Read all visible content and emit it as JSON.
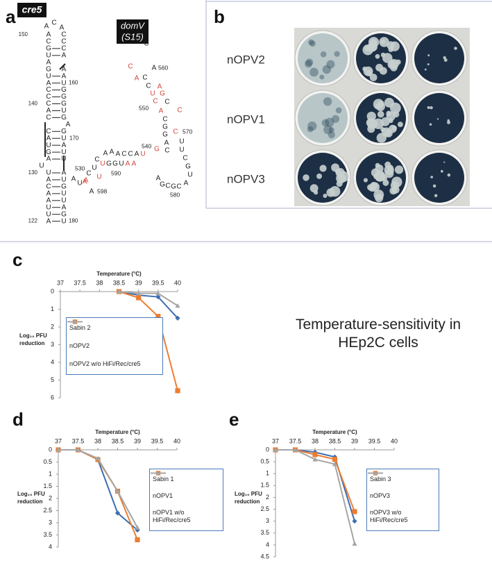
{
  "panel_labels": [
    "a",
    "b",
    "c",
    "d",
    "e"
  ],
  "panel_a": {
    "cre5": {
      "title": "cre5",
      "bases": [
        "A",
        "C",
        "A",
        "A",
        "C",
        "C",
        "C",
        "G",
        "C",
        "U",
        "A",
        "A",
        "G",
        "A",
        "U",
        "A",
        "A",
        "U",
        "C",
        "G",
        "C",
        "G",
        "C",
        "G",
        "A",
        "U",
        "C",
        "G",
        "A",
        "C",
        "G",
        "A",
        "U",
        "U",
        "A",
        "G",
        "U",
        "A",
        "U",
        "U",
        "U",
        "A",
        "A",
        "U",
        "C",
        "G",
        "A",
        "U",
        "A",
        "U",
        "U",
        "A",
        "U",
        "G",
        "A",
        "U"
      ],
      "numbers": [
        "150",
        "160",
        "140",
        "170",
        "130",
        "122",
        "180"
      ]
    },
    "domV": {
      "title": "domV",
      "subtitle": "(S15)",
      "bases": [
        {
          "b": "C",
          "color": "#222222"
        },
        {
          "b": "C",
          "color": "#222222"
        },
        {
          "b": "C",
          "color": "#d0453a"
        },
        {
          "b": "A",
          "color": "#222222"
        },
        {
          "b": "A",
          "color": "#d0453a"
        },
        {
          "b": "C",
          "color": "#222222"
        },
        {
          "b": "C",
          "color": "#222222"
        },
        {
          "b": "A",
          "color": "#d0453a"
        },
        {
          "b": "U",
          "color": "#d0453a"
        },
        {
          "b": "G",
          "color": "#d0453a"
        },
        {
          "b": "C",
          "color": "#d0453a"
        },
        {
          "b": "C",
          "color": "#222222"
        },
        {
          "b": "A",
          "color": "#d0453a"
        },
        {
          "b": "C",
          "color": "#d0453a"
        },
        {
          "b": "C",
          "color": "#222222"
        },
        {
          "b": "G",
          "color": "#222222"
        },
        {
          "b": "G",
          "color": "#222222"
        },
        {
          "b": "C",
          "color": "#d0453a"
        },
        {
          "b": "A",
          "color": "#222222"
        },
        {
          "b": "U",
          "color": "#222222"
        },
        {
          "b": "C",
          "color": "#222222"
        },
        {
          "b": "U",
          "color": "#222222"
        },
        {
          "b": "G",
          "color": "#d0453a"
        },
        {
          "b": "C",
          "color": "#222222"
        },
        {
          "b": "G",
          "color": "#222222"
        },
        {
          "b": "U",
          "color": "#222222"
        },
        {
          "b": "A",
          "color": "#222222"
        },
        {
          "b": "C",
          "color": "#222222"
        },
        {
          "b": "G",
          "color": "#222222"
        },
        {
          "b": "C",
          "color": "#222222"
        },
        {
          "b": "G",
          "color": "#222222"
        },
        {
          "b": "A",
          "color": "#222222"
        },
        {
          "b": "A",
          "color": "#222222"
        },
        {
          "b": "A",
          "color": "#222222"
        },
        {
          "b": "A",
          "color": "#222222"
        },
        {
          "b": "C",
          "color": "#222222"
        },
        {
          "b": "C",
          "color": "#222222"
        },
        {
          "b": "A",
          "color": "#222222"
        },
        {
          "b": "U",
          "color": "#d0453a"
        },
        {
          "b": "U",
          "color": "#d0453a"
        },
        {
          "b": "G",
          "color": "#222222"
        },
        {
          "b": "G",
          "color": "#222222"
        },
        {
          "b": "U",
          "color": "#222222"
        },
        {
          "b": "A",
          "color": "#d0453a"
        },
        {
          "b": "A",
          "color": "#d0453a"
        },
        {
          "b": "C",
          "color": "#222222"
        },
        {
          "b": "U",
          "color": "#222222"
        },
        {
          "b": "C",
          "color": "#222222"
        },
        {
          "b": "U",
          "color": "#d0453a"
        },
        {
          "b": "A",
          "color": "#d0453a"
        },
        {
          "b": "A",
          "color": "#222222"
        },
        {
          "b": "U",
          "color": "#222222"
        },
        {
          "b": "A",
          "color": "#d0453a"
        },
        {
          "b": "A",
          "color": "#222222"
        }
      ],
      "numbers": [
        "560",
        "550",
        "570",
        "540",
        "530",
        "590",
        "580",
        "598"
      ]
    }
  },
  "panel_b": {
    "rows": [
      "nOPV2",
      "nOPV1",
      "nOPV3"
    ]
  },
  "annotation": "Temperature-sensitivity in HEp2C cells",
  "chart_data": [
    {
      "type": "line",
      "xlabel": "Temperature (°C)",
      "ylabel": "Log₁₀ PFU reduction",
      "x": [
        38.5,
        39,
        39.5,
        40
      ],
      "xlim": [
        37,
        40
      ],
      "xticks": [
        37,
        37.5,
        38,
        38.5,
        39,
        39.5,
        40
      ],
      "ylim": [
        0,
        6
      ],
      "yticks": [
        0,
        1,
        2,
        3,
        4,
        5,
        6
      ],
      "y_inverted": true,
      "legend": "left",
      "series": [
        {
          "name": "Sabin 2",
          "color": "#3d6eb0",
          "marker": "diamond",
          "values": [
            0,
            0.2,
            0.3,
            1.5
          ]
        },
        {
          "name": "nOPV2",
          "color": "#ec7d31",
          "marker": "square",
          "values": [
            0,
            0.35,
            1.4,
            5.6
          ]
        },
        {
          "name": "nOPV2 w/o HiFi/Rec/cre5",
          "color": "#a5a5a5",
          "marker": "triangle",
          "values": [
            0,
            0.1,
            0.1,
            0.8
          ]
        }
      ]
    },
    {
      "type": "line",
      "xlabel": "Temperature (°C)",
      "ylabel": "Log₁₀ PFU reduction",
      "x": [
        37,
        37.5,
        38,
        38.5,
        39
      ],
      "xlim": [
        37,
        40
      ],
      "xticks": [
        37,
        37.5,
        38,
        38.5,
        39,
        39.5,
        40
      ],
      "ylim": [
        0,
        4
      ],
      "yticks": [
        0,
        0.5,
        1,
        1.5,
        2,
        2.5,
        3,
        3.5,
        4
      ],
      "y_inverted": true,
      "legend": "right",
      "series": [
        {
          "name": "Sabin 1",
          "color": "#3d6eb0",
          "marker": "diamond",
          "values": [
            0,
            0,
            0.4,
            2.6,
            3.3
          ]
        },
        {
          "name": "nOPV1",
          "color": "#ec7d31",
          "marker": "square",
          "values": [
            0,
            0,
            0.4,
            1.7,
            3.7
          ]
        },
        {
          "name": "nOPV1 w/o HiFi/Rec/cre5",
          "color": "#a5a5a5",
          "marker": "triangle",
          "values": [
            0,
            0,
            0.35,
            1.7,
            3.2
          ]
        }
      ]
    },
    {
      "type": "line",
      "xlabel": "Temperature (°C)",
      "ylabel": "Log₁₀ PFU reduction",
      "x": [
        37,
        37.5,
        38,
        38.5,
        39
      ],
      "xlim": [
        37,
        40
      ],
      "xticks": [
        37,
        37.5,
        38,
        38.5,
        39,
        39.5,
        40
      ],
      "ylim": [
        0,
        4.5
      ],
      "yticks": [
        0,
        0.5,
        1,
        1.5,
        2,
        2.5,
        3,
        3.5,
        4,
        4.5
      ],
      "y_inverted": true,
      "legend": "right",
      "series": [
        {
          "name": "Sabin 3",
          "color": "#3d6eb0",
          "marker": "diamond",
          "values": [
            0,
            0,
            0.1,
            0.3,
            3.0
          ]
        },
        {
          "name": "nOPV3",
          "color": "#ec7d31",
          "marker": "square",
          "values": [
            0,
            0,
            0.2,
            0.4,
            2.6
          ]
        },
        {
          "name": "nOPV3 w/o HiFi/Rec/cre5",
          "color": "#a5a5a5",
          "marker": "triangle",
          "values": [
            0,
            0,
            0.4,
            0.6,
            3.95
          ]
        }
      ]
    }
  ]
}
